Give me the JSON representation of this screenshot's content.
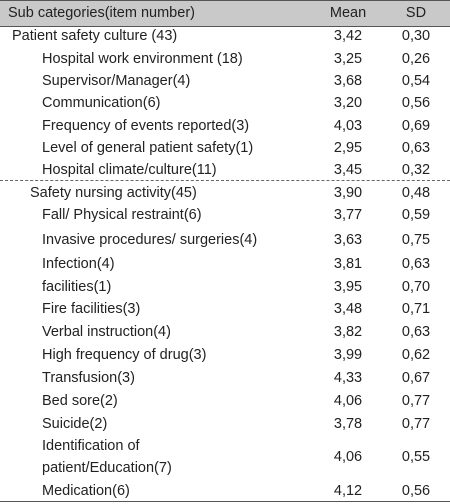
{
  "header": {
    "category": "Sub categories(item number)",
    "mean": "Mean",
    "sd": "SD"
  },
  "rows": [
    {
      "name": "Patient safety culture (43)",
      "mean": "3,42",
      "sd": "0,30"
    },
    {
      "name": "Hospital work environment (18)",
      "mean": "3,25",
      "sd": "0,26"
    },
    {
      "name": "Supervisor/Manager(4)",
      "mean": "3,68",
      "sd": "0,54"
    },
    {
      "name": "Communication(6)",
      "mean": "3,20",
      "sd": "0,56"
    },
    {
      "name": "Frequency of events reported(3)",
      "mean": "4,03",
      "sd": "0,69"
    },
    {
      "name": "Level of general patient safety(1)",
      "mean": "2,95",
      "sd": "0,63"
    },
    {
      "name": "Hospital climate/culture(11)",
      "mean": "3,45",
      "sd": "0,32"
    },
    {
      "name": "Safety nursing activity(45)",
      "mean": "3,90",
      "sd": "0,48"
    },
    {
      "name": "Fall/ Physical restraint(6)",
      "mean": "3,77",
      "sd": "0,59"
    },
    {
      "name": "Invasive procedures/ surgeries(4)",
      "mean": "3,63",
      "sd": "0,75"
    },
    {
      "name": "Infection(4)",
      "mean": "3,81",
      "sd": "0,63"
    },
    {
      "name": "facilities(1)",
      "mean": "3,95",
      "sd": "0,70"
    },
    {
      "name": "Fire facilities(3)",
      "mean": "3,48",
      "sd": "0,71"
    },
    {
      "name": "Verbal instruction(4)",
      "mean": "3,82",
      "sd": "0,63"
    },
    {
      "name": "High frequency of drug(3)",
      "mean": "3,99",
      "sd": "0,62"
    },
    {
      "name": "Transfusion(3)",
      "mean": "4,33",
      "sd": "0,67"
    },
    {
      "name": "Bed sore(2)",
      "mean": "4,06",
      "sd": "0,77"
    },
    {
      "name": "Suicide(2)",
      "mean": "3,78",
      "sd": "0,77"
    },
    {
      "name_line1": "Identification of",
      "name_line2": "patient/Education(7)",
      "mean": "4,06",
      "sd": "0,55"
    },
    {
      "name": "Medication(6)",
      "mean": "4,12",
      "sd": "0,56"
    }
  ]
}
